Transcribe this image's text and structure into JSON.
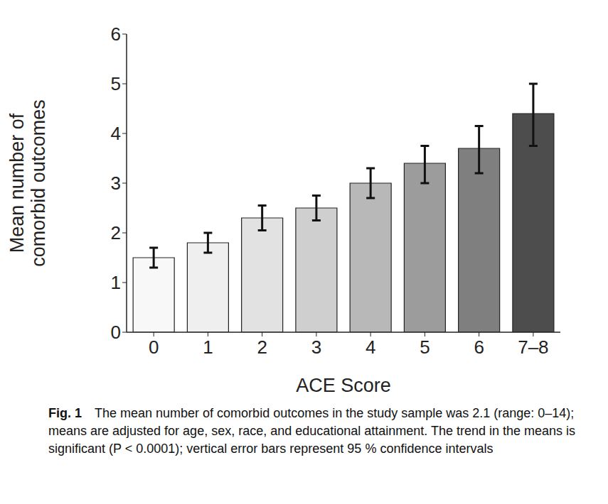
{
  "chart_data": {
    "type": "bar",
    "xlabel": "ACE Score",
    "ylabel": "Mean number of\ncomorbid outcomes",
    "categories": [
      "0",
      "1",
      "2",
      "3",
      "4",
      "5",
      "6",
      "7–8"
    ],
    "values": [
      1.5,
      1.8,
      2.3,
      2.5,
      3.0,
      3.4,
      3.7,
      4.4
    ],
    "ci_lower": [
      1.3,
      1.6,
      2.05,
      2.25,
      2.7,
      3.0,
      3.2,
      3.75
    ],
    "ci_upper": [
      1.7,
      2.0,
      2.55,
      2.75,
      3.3,
      3.75,
      4.15,
      5.0
    ],
    "colors": [
      "#f8f8f8",
      "#efefef",
      "#e2e2e2",
      "#cfcfcf",
      "#b8b8b8",
      "#9c9c9c",
      "#7f7f7f",
      "#4d4d4d"
    ],
    "ylim": [
      0,
      6
    ],
    "yticks": [
      0,
      1,
      2,
      3,
      4,
      5,
      6
    ],
    "grid": false,
    "caption_label": "Fig. 1",
    "caption": "The mean number of comorbid outcomes in the study sample was 2.1 (range: 0–14); means are adjusted for age, sex, race, and educational attainment. The trend in the means is significant (P < 0.0001); vertical error bars represent 95 % confidence intervals"
  }
}
